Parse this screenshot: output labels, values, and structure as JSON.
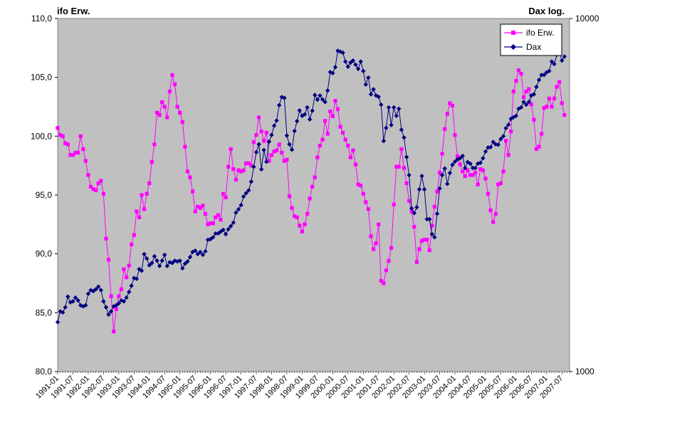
{
  "chart_data": {
    "type": "line",
    "left_axis_title": "ifo Erw.",
    "right_axis_title": "Dax log.",
    "y_left": {
      "min": 80,
      "max": 110,
      "ticks": [
        "80,0",
        "85,0",
        "90,0",
        "95,0",
        "100,0",
        "105,0",
        "110,0"
      ],
      "tick_values": [
        80,
        85,
        90,
        95,
        100,
        105,
        110
      ]
    },
    "y_right": {
      "scale": "log",
      "min": 1000,
      "max": 10000,
      "ticks": [
        "1000",
        "10000"
      ],
      "tick_values": [
        1000,
        10000
      ]
    },
    "x_start": "1991-01",
    "x_end": "2007-10",
    "x_ticks": [
      "1991-01",
      "1991-07",
      "1992-01",
      "1992-07",
      "1993-01",
      "1993-07",
      "1994-01",
      "1994-07",
      "1995-01",
      "1995-07",
      "1996-01",
      "1996-07",
      "1997-01",
      "1997-07",
      "1998-01",
      "1998-07",
      "1999-01",
      "1999-07",
      "2000-01",
      "2000-07",
      "2001-01",
      "2001-07",
      "2002-01",
      "2002-07",
      "2003-01",
      "2003-07",
      "2004-01",
      "2004-07",
      "2005-01",
      "2005-07",
      "2006-01",
      "2006-07",
      "2007-01",
      "2007-07"
    ],
    "grid": false,
    "plot_background": "#c0c0c0",
    "legend_position": "top-right",
    "series": [
      {
        "name": "ifo Erw.",
        "color": "#ff00ff",
        "marker": "square",
        "axis": "left",
        "values": [
          100.7,
          100.1,
          100.0,
          99.4,
          99.3,
          98.4,
          98.4,
          98.6,
          98.6,
          100.0,
          98.9,
          97.9,
          96.7,
          95.7,
          95.5,
          95.4,
          96.0,
          96.2,
          95.1,
          91.3,
          89.5,
          86.4,
          83.4,
          85.3,
          86.4,
          87.0,
          88.7,
          88.0,
          89.0,
          90.8,
          91.6,
          93.6,
          93.1,
          95.0,
          93.8,
          95.1,
          96.0,
          97.8,
          99.3,
          102.0,
          101.8,
          102.9,
          102.5,
          101.6,
          103.8,
          105.2,
          104.4,
          102.5,
          102.0,
          101.2,
          99.1,
          97.0,
          96.5,
          95.3,
          93.6,
          94.0,
          93.9,
          94.1,
          93.4,
          92.5,
          92.6,
          92.6,
          93.1,
          93.3,
          92.9,
          95.1,
          94.8,
          97.4,
          98.9,
          97.2,
          96.3,
          97.1,
          97.0,
          97.1,
          97.7,
          97.7,
          97.5,
          99.5,
          100.1,
          101.6,
          100.4,
          99.6,
          100.3,
          97.9,
          98.4,
          98.7,
          98.8,
          99.3,
          98.6,
          97.9,
          98.0,
          94.9,
          93.9,
          93.2,
          93.1,
          92.4,
          91.9,
          92.5,
          93.4,
          94.7,
          95.7,
          96.5,
          98.2,
          99.2,
          99.7,
          101.3,
          100.2,
          102.1,
          101.7,
          103.0,
          102.3,
          100.8,
          100.3,
          99.7,
          99.2,
          98.2,
          98.8,
          97.6,
          95.9,
          95.8,
          95.1,
          94.4,
          93.8,
          91.5,
          90.4,
          90.9,
          92.5,
          87.7,
          87.5,
          88.6,
          89.4,
          90.5,
          94.2,
          97.4,
          97.4,
          98.9,
          97.3,
          96.0,
          94.5,
          93.6,
          92.3,
          89.3,
          90.4,
          91.1,
          91.2,
          91.2,
          90.3,
          92.4,
          94.0,
          95.3,
          96.9,
          98.5,
          100.6,
          101.9,
          102.8,
          102.6,
          100.1,
          98.3,
          97.6,
          97.0,
          96.6,
          97.1,
          96.7,
          96.7,
          96.9,
          95.9,
          97.2,
          97.1,
          96.4,
          95.1,
          93.7,
          92.7,
          93.4,
          95.9,
          96.0,
          97.0,
          99.6,
          98.4,
          100.4,
          103.8,
          104.7,
          105.6,
          105.3,
          103.3,
          103.8,
          104.0,
          102.7,
          101.4,
          98.9,
          99.1,
          100.2,
          102.4,
          102.5,
          103.2,
          102.5,
          103.2,
          104.2,
          104.6,
          102.8,
          101.8
        ]
      },
      {
        "name": "Dax",
        "color": "#000080",
        "marker": "diamond",
        "axis": "right",
        "values": [
          1380,
          1480,
          1470,
          1520,
          1630,
          1570,
          1580,
          1620,
          1590,
          1540,
          1530,
          1540,
          1660,
          1700,
          1690,
          1710,
          1740,
          1700,
          1580,
          1520,
          1450,
          1480,
          1530,
          1540,
          1560,
          1590,
          1580,
          1620,
          1680,
          1750,
          1840,
          1830,
          1950,
          1930,
          2150,
          2090,
          2000,
          2030,
          2120,
          2060,
          1990,
          2060,
          2140,
          1990,
          2040,
          2030,
          2060,
          2050,
          2060,
          1960,
          2020,
          2050,
          2110,
          2180,
          2200,
          2150,
          2180,
          2140,
          2190,
          2360,
          2370,
          2400,
          2460,
          2460,
          2490,
          2520,
          2450,
          2530,
          2580,
          2640,
          2820,
          2880,
          2960,
          3130,
          3200,
          3260,
          3450,
          3800,
          4180,
          4400,
          3740,
          4240,
          3930,
          4480,
          4680,
          4970,
          5140,
          5680,
          5990,
          5960,
          4660,
          4400,
          4250,
          4800,
          5120,
          5490,
          5300,
          5350,
          5600,
          5180,
          5480,
          6070,
          5890,
          6050,
          5900,
          5800,
          6250,
          7050,
          7000,
          7280,
          8100,
          8050,
          8000,
          7550,
          7300,
          7500,
          7600,
          7400,
          7200,
          7550,
          7100,
          6500,
          6800,
          6100,
          6300,
          6050,
          6000,
          5700,
          4500,
          4900,
          5600,
          4990,
          5600,
          5300,
          5550,
          4840,
          4600,
          4050,
          3600,
          2900,
          2810,
          2920,
          3280,
          3580,
          3280,
          2700,
          2700,
          2450,
          2400,
          2800,
          3300,
          3600,
          3760,
          3400,
          3650,
          3850,
          3930,
          3990,
          4020,
          4080,
          3770,
          3920,
          3880,
          3770,
          3770,
          3880,
          3900,
          4020,
          4200,
          4310,
          4320,
          4470,
          4400,
          4390,
          4560,
          4640,
          4890,
          5000,
          5200,
          5250,
          5300,
          5550,
          5600,
          5800,
          5700,
          5800,
          6050,
          6100,
          6400,
          6700,
          6920,
          6920,
          7040,
          7100,
          7550,
          7430,
          7900,
          8020,
          7600,
          7800
        ]
      }
    ]
  }
}
